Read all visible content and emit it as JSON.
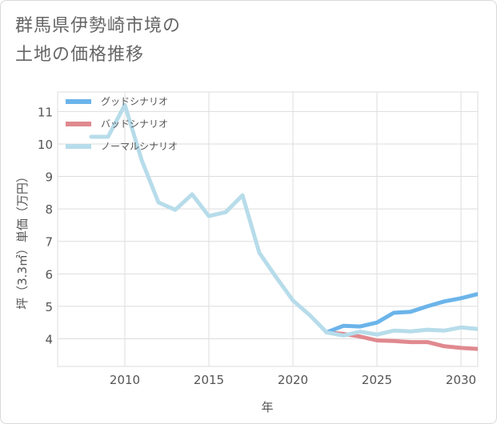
{
  "title_line1": "群馬県伊勢崎市境の",
  "title_line2": "土地の価格推移",
  "chart_data": {
    "type": "line",
    "xlabel": "年",
    "ylabel": "坪（3.3㎡）単価（万円）",
    "xlim": [
      2006,
      2031
    ],
    "ylim": [
      3.15,
      11.6
    ],
    "x_ticks": [
      2010,
      2015,
      2020,
      2025,
      2030
    ],
    "y_ticks": [
      4,
      5,
      6,
      7,
      8,
      9,
      10,
      11
    ],
    "grid": true,
    "legend_position": "top-left",
    "series": [
      {
        "name": "グッドシナリオ",
        "color": "#6bb4ea",
        "x": [
          2022,
          2023,
          2024,
          2025,
          2026,
          2027,
          2028,
          2029,
          2030,
          2031
        ],
        "y": [
          4.2,
          4.4,
          4.38,
          4.5,
          4.8,
          4.83,
          5.0,
          5.15,
          5.25,
          5.38
        ]
      },
      {
        "name": "バッドシナリオ",
        "color": "#e0898f",
        "x": [
          2022,
          2023,
          2024,
          2025,
          2026,
          2027,
          2028,
          2029,
          2030,
          2031
        ],
        "y": [
          4.2,
          4.15,
          4.07,
          3.95,
          3.93,
          3.9,
          3.9,
          3.77,
          3.72,
          3.69
        ]
      },
      {
        "name": "ノーマルシナリオ",
        "color": "#b7dcea",
        "x": [
          2008,
          2009,
          2010,
          2011,
          2012,
          2013,
          2014,
          2015,
          2016,
          2017,
          2018,
          2019,
          2020,
          2021,
          2022,
          2023,
          2024,
          2025,
          2026,
          2027,
          2028,
          2029,
          2030,
          2031
        ],
        "y": [
          10.22,
          10.22,
          11.2,
          9.5,
          8.2,
          7.97,
          8.45,
          7.78,
          7.9,
          8.42,
          6.65,
          5.9,
          5.18,
          4.73,
          4.2,
          4.1,
          4.22,
          4.13,
          4.25,
          4.23,
          4.28,
          4.25,
          4.35,
          4.3
        ]
      }
    ]
  }
}
